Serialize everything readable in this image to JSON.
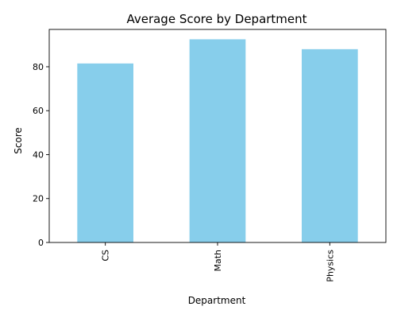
{
  "chart_data": {
    "type": "bar",
    "title": "Average Score by Department",
    "xlabel": "Department",
    "ylabel": "Score",
    "categories": [
      "CS",
      "Math",
      "Physics"
    ],
    "values": [
      81.5,
      92.5,
      88.0
    ],
    "yticks": [
      0,
      20,
      40,
      60,
      80
    ],
    "ylim": [
      0,
      97
    ],
    "grid": false,
    "bar_color": "#87ceeb"
  }
}
